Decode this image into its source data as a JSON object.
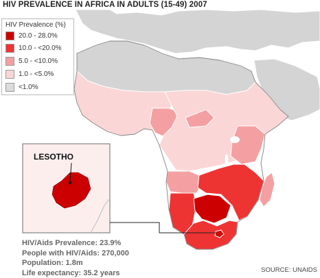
{
  "title": "HIV PREVALENCE IN AFRICA IN ADULTS (15-49) 2007",
  "legend": {
    "title": "HIV Prevalence (%)",
    "items": [
      {
        "label": "20.0 - 28.0%",
        "color": "#cc0000"
      },
      {
        "label": "10.0 - <20.0%",
        "color": "#ee3333"
      },
      {
        "label": "5.0 - <10.0%",
        "color": "#f4a0a2"
      },
      {
        "label": "1.0 - <5.0%",
        "color": "#fbd6d6"
      },
      {
        "label": "<1.0%",
        "color": "#dcdcdc"
      }
    ]
  },
  "inset": {
    "title": "LESOTHO",
    "stats": [
      "HIV/Aids Prevalence: 23.9%",
      "People with HIV/Aids: 270,000",
      "Population: 1.8m",
      "Life expectancy: 35.2 years"
    ]
  },
  "source": "SOURCE: UNAIDS",
  "colors": {
    "sea": "#ffffff",
    "non_african_land": "#d4d4d4",
    "inset_background": "#fdeeee",
    "border": "#ffffff"
  }
}
